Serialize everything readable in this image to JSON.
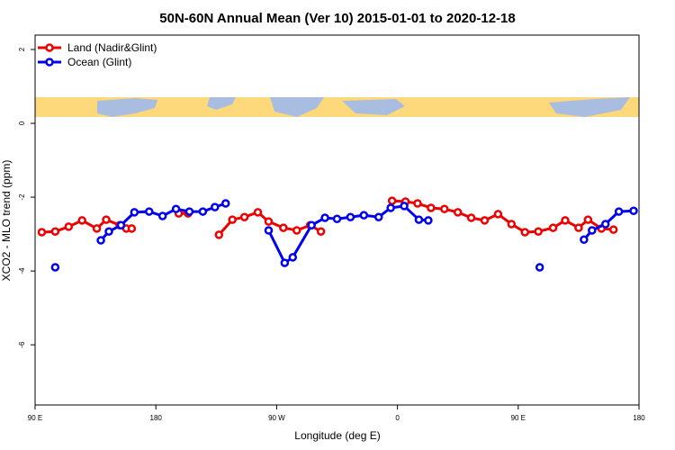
{
  "chart_data": {
    "type": "line",
    "title": "50N-60N Annual Mean (Ver 10)   2015-01-01 to 2020-12-18",
    "x_label": "Longitude (deg E)",
    "y_label": "XCO2 - MLO trend (ppm)",
    "xlim": [
      90,
      540
    ],
    "xticks": [
      {
        "value": 90,
        "label": "90 E"
      },
      {
        "value": 180,
        "label": "180"
      },
      {
        "value": 270,
        "label": "90 W"
      },
      {
        "value": 360,
        "label": "0"
      },
      {
        "value": 450,
        "label": "90 E"
      },
      {
        "value": 540,
        "label": "180"
      }
    ],
    "ylim": [
      -7.63,
      2.39
    ],
    "yticks": [
      -6,
      -4,
      -2,
      0,
      2
    ],
    "legend": "top-left",
    "series": [
      {
        "name": "Land (Nadir&Glint)",
        "color": "#ee0000",
        "x": [
          95,
          105,
          115,
          125,
          136,
          143,
          153,
          158,
          162,
          null,
          197,
          204,
          null,
          227,
          237,
          246,
          256,
          264,
          275,
          285,
          295,
          303,
          null,
          356,
          366,
          375,
          385,
          395,
          405,
          415,
          425,
          435,
          445,
          455,
          465,
          476,
          485,
          495,
          502,
          512,
          521
        ],
        "values": [
          -2.95,
          -2.93,
          -2.8,
          -2.63,
          -2.85,
          -2.61,
          -2.76,
          -2.85,
          -2.85,
          null,
          -2.44,
          -2.44,
          null,
          -3.02,
          -2.61,
          -2.54,
          -2.41,
          -2.66,
          -2.83,
          -2.9,
          -2.76,
          -2.93,
          null,
          -2.1,
          -2.12,
          -2.17,
          -2.29,
          -2.32,
          -2.41,
          -2.56,
          -2.63,
          -2.46,
          -2.73,
          -2.95,
          -2.93,
          -2.83,
          -2.63,
          -2.83,
          -2.61,
          -2.85,
          -2.88
        ]
      },
      {
        "name": "Ocean (Glint)",
        "color": "#0000ee",
        "x": [
          105,
          null,
          139,
          145,
          154,
          164,
          175,
          185,
          195,
          205,
          215,
          224,
          232,
          null,
          264,
          276,
          282,
          296,
          306,
          315,
          325,
          335,
          346,
          355,
          365,
          376,
          383,
          null,
          466,
          null,
          499,
          505,
          515,
          525,
          536
        ],
        "values": [
          -3.9,
          null,
          -3.17,
          -2.93,
          -2.76,
          -2.41,
          -2.39,
          -2.51,
          -2.32,
          -2.39,
          -2.39,
          -2.27,
          -2.17,
          null,
          -2.9,
          -3.78,
          -3.63,
          -2.76,
          -2.56,
          -2.59,
          -2.54,
          -2.49,
          -2.54,
          -2.29,
          -2.24,
          -2.61,
          -2.63,
          null,
          -3.9,
          null,
          -3.15,
          -2.9,
          -2.73,
          -2.39,
          -2.37
        ]
      }
    ]
  }
}
